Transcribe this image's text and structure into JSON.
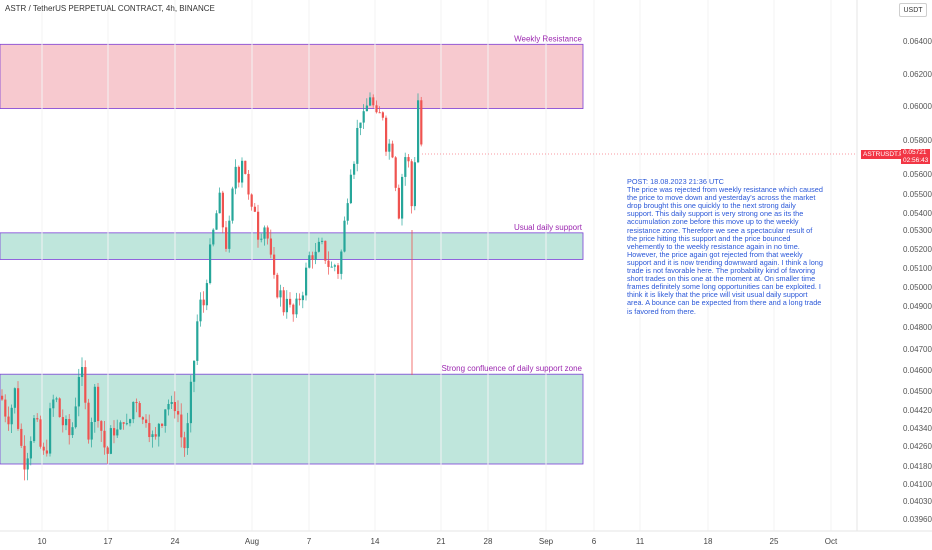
{
  "header": {
    "title": "ASTR / TetherUS PERPETUAL CONTRACT, 4h, BINANCE",
    "currency": "USDT"
  },
  "current_price": {
    "symbol": "ASTRUSDT.P",
    "price": "0.05721",
    "countdown": "02:56:43",
    "color": "#f23645"
  },
  "note": "POST: 18.08.2023 21:36 UTC\nThe price was rejected from weekly resistance which caused the price to move down and yesterday's across the market drop brought this one quickly to the next strong daily support. This daily support is very strong one as its the accumulation zone before this move up to the weekly resistance zone. Therefore we see a spectacular result of the price hitting this support and the price bounced vehemently to the weekly resistance again in no time. However, the price again got rejected from that weekly support and it is now trending downward again. I think a long trade is not favorable here. The probability kind of favoring short trades on this one at the moment at. On smaller time frames definitely some long opportunities can be exploited. I think it is likely that the price will visit usual daily support area. A bounce can be expected from there and a long trade is favored from there.",
  "chart_data": {
    "type": "candlestick",
    "x_ticks": [
      "10",
      "17",
      "24",
      "Aug",
      "7",
      "14",
      "21",
      "28",
      "Sep",
      "6",
      "11",
      "18",
      "25",
      "Oct"
    ],
    "y_ticks": [
      "0.06400",
      "0.06200",
      "0.06000",
      "0.05800",
      "0.05600",
      "0.05500",
      "0.05400",
      "0.05300",
      "0.05200",
      "0.05100",
      "0.05000",
      "0.04900",
      "0.04800",
      "0.04700",
      "0.04600",
      "0.04500",
      "0.04420",
      "0.04340",
      "0.04260",
      "0.04180",
      "0.04100",
      "0.04030",
      "0.03960"
    ],
    "up_color": "#26a69a",
    "down_color": "#ef5350",
    "zones": [
      {
        "label": "Weekly Resistance",
        "top": 0.0638,
        "bottom": 0.05985,
        "fill": "#f7c9cf",
        "border": "#7b3fd6",
        "label_color": "#9c27b0"
      },
      {
        "label": "Usual daily support",
        "top": 0.05285,
        "bottom": 0.05145,
        "fill": "#bfe6dc",
        "border": "#7b3fd6",
        "label_color": "#9c27b0"
      },
      {
        "label": "Strong confluence of daily support zone",
        "top": 0.0458,
        "bottom": 0.04188,
        "fill": "#bfe6dc",
        "border": "#7b3fd6",
        "label_color": "#9c27b0"
      }
    ],
    "waypoints": [
      [
        0,
        0.0448
      ],
      [
        4,
        0.0442
      ],
      [
        8,
        0.044
      ],
      [
        12,
        0.0446
      ],
      [
        14,
        0.045
      ],
      [
        18,
        0.0432
      ],
      [
        22,
        0.042
      ],
      [
        26,
        0.0424
      ],
      [
        30,
        0.0432
      ],
      [
        34,
        0.0438
      ],
      [
        38,
        0.0428
      ],
      [
        42,
        0.042
      ],
      [
        46,
        0.0428
      ],
      [
        50,
        0.0442
      ],
      [
        54,
        0.0448
      ],
      [
        58,
        0.044
      ],
      [
        62,
        0.0436
      ],
      [
        66,
        0.0432
      ],
      [
        70,
        0.043
      ],
      [
        74,
        0.0444
      ],
      [
        78,
        0.046
      ],
      [
        82,
        0.0455
      ],
      [
        86,
        0.0432
      ],
      [
        90,
        0.0438
      ],
      [
        94,
        0.045
      ],
      [
        98,
        0.044
      ],
      [
        102,
        0.0428
      ],
      [
        106,
        0.0422
      ],
      [
        110,
        0.043
      ],
      [
        114,
        0.0436
      ],
      [
        118,
        0.0428
      ],
      [
        122,
        0.0442
      ],
      [
        126,
        0.0432
      ],
      [
        130,
        0.044
      ],
      [
        134,
        0.045
      ],
      [
        138,
        0.0444
      ],
      [
        142,
        0.0436
      ],
      [
        146,
        0.0442
      ],
      [
        150,
        0.043
      ],
      [
        154,
        0.0426
      ],
      [
        158,
        0.0438
      ],
      [
        162,
        0.044
      ],
      [
        166,
        0.0448
      ],
      [
        170,
        0.044
      ],
      [
        174,
        0.0446
      ],
      [
        178,
        0.0438
      ],
      [
        182,
        0.0424
      ],
      [
        186,
        0.043
      ],
      [
        190,
        0.045
      ],
      [
        194,
        0.047
      ],
      [
        198,
        0.0492
      ],
      [
        202,
        0.0488
      ],
      [
        206,
        0.0508
      ],
      [
        210,
        0.052
      ],
      [
        214,
        0.0535
      ],
      [
        218,
        0.0548
      ],
      [
        222,
        0.0532
      ],
      [
        226,
        0.052
      ],
      [
        230,
        0.054
      ],
      [
        234,
        0.0566
      ],
      [
        238,
        0.056
      ],
      [
        242,
        0.0574
      ],
      [
        246,
        0.0552
      ],
      [
        250,
        0.0538
      ],
      [
        254,
        0.0544
      ],
      [
        258,
        0.0524
      ],
      [
        262,
        0.0536
      ],
      [
        266,
        0.0528
      ],
      [
        270,
        0.0512
      ],
      [
        274,
        0.0498
      ],
      [
        278,
        0.05
      ],
      [
        282,
        0.0488
      ],
      [
        286,
        0.0498
      ],
      [
        290,
        0.0484
      ],
      [
        294,
        0.0486
      ],
      [
        298,
        0.0494
      ],
      [
        302,
        0.05
      ],
      [
        306,
        0.051
      ],
      [
        310,
        0.052
      ],
      [
        314,
        0.0515
      ],
      [
        318,
        0.052
      ],
      [
        322,
        0.052
      ],
      [
        326,
        0.0514
      ],
      [
        330,
        0.0509
      ],
      [
        334,
        0.0512
      ],
      [
        338,
        0.0508
      ],
      [
        342,
        0.0526
      ],
      [
        346,
        0.0548
      ],
      [
        350,
        0.0566
      ],
      [
        354,
        0.0572
      ],
      [
        358,
        0.0596
      ],
      [
        362,
        0.059
      ],
      [
        366,
        0.06
      ],
      [
        370,
        0.061
      ],
      [
        374,
        0.059
      ],
      [
        378,
        0.0594
      ],
      [
        382,
        0.0596
      ],
      [
        386,
        0.0572
      ],
      [
        390,
        0.0582
      ],
      [
        394,
        0.056
      ],
      [
        398,
        0.054
      ],
      [
        402,
        0.0566
      ],
      [
        406,
        0.0574
      ],
      [
        410,
        0.055
      ],
      [
        412,
        0.053
      ],
      [
        414,
        0.0574
      ],
      [
        416,
        0.0612
      ],
      [
        418,
        0.0596
      ],
      [
        420,
        0.0578
      ],
      [
        422,
        0.0572
      ]
    ]
  }
}
